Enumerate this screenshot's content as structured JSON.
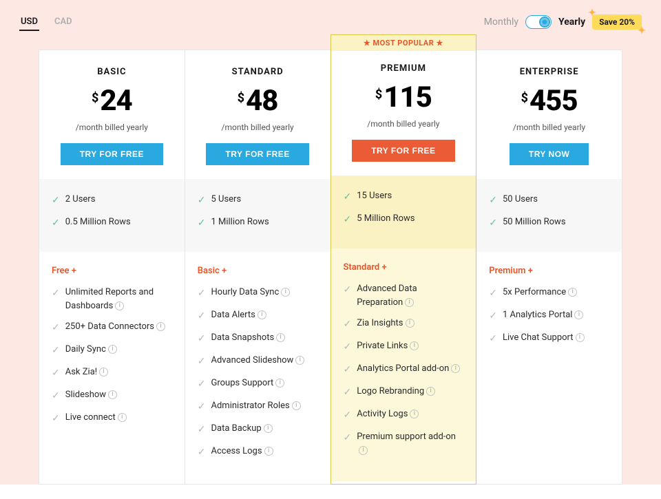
{
  "currency": {
    "tabs": [
      "USD",
      "CAD"
    ],
    "active": 0
  },
  "billing": {
    "monthly": "Monthly",
    "yearly": "Yearly",
    "save": "Save 20%"
  },
  "popular_banner": "★ MOST POPULAR ★",
  "plans": [
    {
      "name": "BASIC",
      "price": "24",
      "note": "/month billed yearly",
      "cta": "TRY FOR FREE",
      "cta_style": "blue",
      "limits": [
        "2 Users",
        "0.5 Million Rows"
      ],
      "tier": "Free +",
      "features": [
        {
          "t": "Unlimited Reports and Dashboards",
          "i": true
        },
        {
          "t": "250+ Data Connectors",
          "i": true
        },
        {
          "t": "Daily Sync",
          "i": true
        },
        {
          "t": "Ask Zia!",
          "i": true
        },
        {
          "t": "Slideshow",
          "i": true
        },
        {
          "t": "Live connect",
          "i": true
        }
      ]
    },
    {
      "name": "STANDARD",
      "price": "48",
      "note": "/month billed yearly",
      "cta": "TRY FOR FREE",
      "cta_style": "blue",
      "limits": [
        "5 Users",
        "1 Million Rows"
      ],
      "tier": "Basic +",
      "features": [
        {
          "t": "Hourly Data Sync",
          "i": true
        },
        {
          "t": "Data Alerts",
          "i": true
        },
        {
          "t": "Data Snapshots",
          "i": true
        },
        {
          "t": "Advanced Slideshow",
          "i": true
        },
        {
          "t": "Groups Support",
          "i": true
        },
        {
          "t": "Administrator Roles",
          "i": true
        },
        {
          "t": "Data Backup",
          "i": true
        },
        {
          "t": "Access Logs",
          "i": true
        }
      ]
    },
    {
      "name": "PREMIUM",
      "price": "115",
      "note": "/month billed yearly",
      "cta": "TRY FOR FREE",
      "cta_style": "red",
      "popular": true,
      "limits": [
        "15 Users",
        "5 Million Rows"
      ],
      "tier": "Standard +",
      "features": [
        {
          "t": "Advanced Data Preparation",
          "i": true
        },
        {
          "t": "Zia Insights",
          "i": true
        },
        {
          "t": "Private Links",
          "i": true
        },
        {
          "t": "Analytics Portal add-on",
          "i": true
        },
        {
          "t": "Logo Rebranding",
          "i": true
        },
        {
          "t": "Activity Logs",
          "i": true
        },
        {
          "t": "Premium support add-on",
          "i": true
        }
      ]
    },
    {
      "name": "ENTERPRISE",
      "price": "455",
      "note": "/month billed yearly",
      "cta": "TRY NOW",
      "cta_style": "blue",
      "limits": [
        "50 Users",
        "50 Million Rows"
      ],
      "tier": "Premium +",
      "features": [
        {
          "t": "5x Performance",
          "i": true
        },
        {
          "t": "1 Analytics Portal",
          "i": true
        },
        {
          "t": "Live Chat Support",
          "i": true
        }
      ]
    }
  ]
}
